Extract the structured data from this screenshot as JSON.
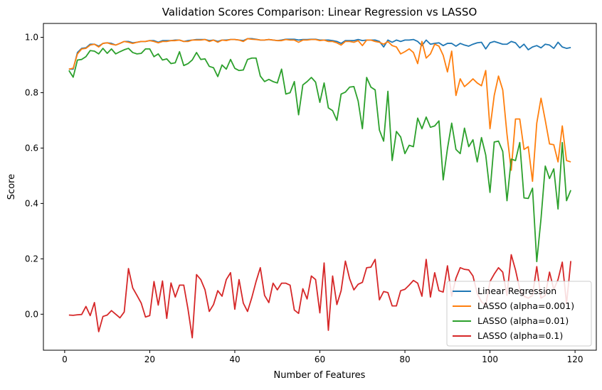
{
  "chart_data": {
    "type": "line",
    "title": "Validation Scores Comparison: Linear Regression vs LASSO",
    "xlabel": "Number of Features",
    "ylabel": "Score",
    "xlim": [
      -5,
      125
    ],
    "ylim": [
      -0.13,
      1.05
    ],
    "xticks": [
      0,
      20,
      40,
      60,
      80,
      100,
      120
    ],
    "yticks": [
      0.0,
      0.2,
      0.4,
      0.6,
      0.8,
      1.0
    ],
    "xtick_labels": [
      "0",
      "20",
      "40",
      "60",
      "80",
      "100",
      "120"
    ],
    "ytick_labels": [
      "0.0",
      "0.2",
      "0.4",
      "0.6",
      "0.8",
      "1.0"
    ],
    "grid": false,
    "legend_position": "lower-right",
    "x": [
      1,
      2,
      3,
      4,
      5,
      6,
      7,
      8,
      9,
      10,
      11,
      12,
      13,
      14,
      15,
      16,
      17,
      18,
      19,
      20,
      21,
      22,
      23,
      24,
      25,
      26,
      27,
      28,
      29,
      30,
      31,
      32,
      33,
      34,
      35,
      36,
      37,
      38,
      39,
      40,
      41,
      42,
      43,
      44,
      45,
      46,
      47,
      48,
      49,
      50,
      51,
      52,
      53,
      54,
      55,
      56,
      57,
      58,
      59,
      60,
      61,
      62,
      63,
      64,
      65,
      66,
      67,
      68,
      69,
      70,
      71,
      72,
      73,
      74,
      75,
      76,
      77,
      78,
      79,
      80,
      81,
      82,
      83,
      84,
      85,
      86,
      87,
      88,
      89,
      90,
      91,
      92,
      93,
      94,
      95,
      96,
      97,
      98,
      99,
      100,
      101,
      102,
      103,
      104,
      105,
      106,
      107,
      108,
      109,
      110,
      111,
      112,
      113,
      114,
      115,
      116,
      117,
      118,
      119
    ],
    "series": [
      {
        "name": "Linear Regression",
        "color": "#1f77b4",
        "values": [
          0.885,
          0.885,
          0.945,
          0.96,
          0.962,
          0.975,
          0.975,
          0.968,
          0.978,
          0.98,
          0.978,
          0.972,
          0.978,
          0.985,
          0.985,
          0.98,
          0.982,
          0.985,
          0.985,
          0.988,
          0.988,
          0.982,
          0.988,
          0.988,
          0.988,
          0.99,
          0.99,
          0.985,
          0.988,
          0.99,
          0.992,
          0.992,
          0.992,
          0.988,
          0.99,
          0.985,
          0.99,
          0.99,
          0.992,
          0.992,
          0.99,
          0.988,
          0.995,
          0.995,
          0.993,
          0.99,
          0.99,
          0.992,
          0.99,
          0.988,
          0.99,
          0.993,
          0.993,
          0.993,
          0.99,
          0.992,
          0.992,
          0.993,
          0.993,
          0.99,
          0.99,
          0.99,
          0.988,
          0.985,
          0.978,
          0.988,
          0.988,
          0.988,
          0.992,
          0.988,
          0.99,
          0.99,
          0.99,
          0.985,
          0.965,
          0.99,
          0.982,
          0.99,
          0.985,
          0.99,
          0.99,
          0.992,
          0.985,
          0.97,
          0.99,
          0.975,
          0.978,
          0.98,
          0.97,
          0.978,
          0.978,
          0.968,
          0.978,
          0.972,
          0.968,
          0.975,
          0.98,
          0.982,
          0.958,
          0.98,
          0.985,
          0.98,
          0.975,
          0.975,
          0.985,
          0.98,
          0.962,
          0.975,
          0.955,
          0.965,
          0.97,
          0.962,
          0.975,
          0.972,
          0.96,
          0.982,
          0.965,
          0.96,
          0.963
        ]
      },
      {
        "name": "LASSO (alpha=0.001)",
        "color": "#ff7f0e",
        "values": [
          0.885,
          0.888,
          0.94,
          0.958,
          0.96,
          0.972,
          0.975,
          0.965,
          0.978,
          0.98,
          0.975,
          0.972,
          0.978,
          0.985,
          0.982,
          0.978,
          0.982,
          0.985,
          0.985,
          0.988,
          0.985,
          0.98,
          0.985,
          0.985,
          0.988,
          0.988,
          0.99,
          0.985,
          0.985,
          0.99,
          0.99,
          0.99,
          0.992,
          0.985,
          0.99,
          0.982,
          0.99,
          0.988,
          0.992,
          0.992,
          0.99,
          0.985,
          0.995,
          0.993,
          0.992,
          0.99,
          0.99,
          0.992,
          0.99,
          0.988,
          0.988,
          0.992,
          0.99,
          0.99,
          0.982,
          0.99,
          0.99,
          0.992,
          0.992,
          0.988,
          0.99,
          0.985,
          0.985,
          0.98,
          0.972,
          0.985,
          0.985,
          0.982,
          0.988,
          0.97,
          0.99,
          0.99,
          0.985,
          0.982,
          0.975,
          0.985,
          0.97,
          0.965,
          0.94,
          0.948,
          0.958,
          0.945,
          0.905,
          0.985,
          0.925,
          0.94,
          0.975,
          0.968,
          0.935,
          0.875,
          0.95,
          0.79,
          0.85,
          0.822,
          0.835,
          0.85,
          0.835,
          0.825,
          0.88,
          0.67,
          0.79,
          0.86,
          0.81,
          0.65,
          0.52,
          0.705,
          0.705,
          0.595,
          0.605,
          0.48,
          0.69,
          0.78,
          0.7,
          0.615,
          0.612,
          0.55,
          0.68,
          0.555,
          0.55
        ]
      },
      {
        "name": "LASSO (alpha=0.01)",
        "color": "#2ca02c",
        "values": [
          0.88,
          0.856,
          0.918,
          0.92,
          0.93,
          0.952,
          0.95,
          0.94,
          0.96,
          0.942,
          0.958,
          0.94,
          0.948,
          0.955,
          0.96,
          0.945,
          0.94,
          0.942,
          0.958,
          0.958,
          0.93,
          0.94,
          0.918,
          0.922,
          0.905,
          0.908,
          0.948,
          0.898,
          0.905,
          0.918,
          0.945,
          0.92,
          0.922,
          0.895,
          0.89,
          0.858,
          0.9,
          0.885,
          0.92,
          0.888,
          0.88,
          0.882,
          0.92,
          0.925,
          0.925,
          0.86,
          0.84,
          0.848,
          0.84,
          0.835,
          0.885,
          0.795,
          0.8,
          0.84,
          0.72,
          0.828,
          0.84,
          0.855,
          0.838,
          0.765,
          0.835,
          0.745,
          0.735,
          0.7,
          0.795,
          0.802,
          0.82,
          0.822,
          0.77,
          0.67,
          0.855,
          0.82,
          0.81,
          0.665,
          0.625,
          0.805,
          0.555,
          0.66,
          0.64,
          0.58,
          0.61,
          0.605,
          0.708,
          0.67,
          0.712,
          0.675,
          0.68,
          0.698,
          0.485,
          0.598,
          0.69,
          0.595,
          0.58,
          0.672,
          0.605,
          0.63,
          0.55,
          0.638,
          0.575,
          0.44,
          0.622,
          0.625,
          0.588,
          0.41,
          0.56,
          0.555,
          0.62,
          0.42,
          0.418,
          0.455,
          0.19,
          0.345,
          0.535,
          0.49,
          0.525,
          0.38,
          0.62,
          0.41,
          0.448
        ]
      },
      {
        "name": "LASSO (alpha=0.1)",
        "color": "#d62728",
        "values": [
          -0.003,
          -0.004,
          -0.002,
          -0.001,
          0.028,
          -0.005,
          0.042,
          -0.063,
          -0.008,
          -0.003,
          0.013,
          0.0,
          -0.013,
          0.008,
          0.165,
          0.095,
          0.068,
          0.04,
          -0.01,
          -0.005,
          0.118,
          0.033,
          0.12,
          -0.015,
          0.113,
          0.062,
          0.105,
          0.105,
          0.018,
          -0.085,
          0.143,
          0.125,
          0.088,
          0.01,
          0.035,
          0.085,
          0.065,
          0.125,
          0.15,
          0.018,
          0.125,
          0.04,
          0.01,
          0.06,
          0.118,
          0.168,
          0.068,
          0.042,
          0.112,
          0.088,
          0.112,
          0.112,
          0.105,
          0.015,
          0.003,
          0.092,
          0.055,
          0.138,
          0.125,
          0.005,
          0.185,
          -0.058,
          0.138,
          0.035,
          0.085,
          0.192,
          0.128,
          0.088,
          0.108,
          0.115,
          0.168,
          0.17,
          0.198,
          0.052,
          0.082,
          0.078,
          0.03,
          0.03,
          0.085,
          0.09,
          0.105,
          0.122,
          0.112,
          0.065,
          0.198,
          0.062,
          0.15,
          0.085,
          0.08,
          0.175,
          0.065,
          0.13,
          0.168,
          0.162,
          0.16,
          0.138,
          0.075,
          0.045,
          0.032,
          0.118,
          0.145,
          0.168,
          0.152,
          0.068,
          0.215,
          0.16,
          0.09,
          0.065,
          0.058,
          0.068,
          0.172,
          0.058,
          0.068,
          0.152,
          0.09,
          0.125,
          0.188,
          0.038,
          0.192
        ]
      }
    ]
  }
}
